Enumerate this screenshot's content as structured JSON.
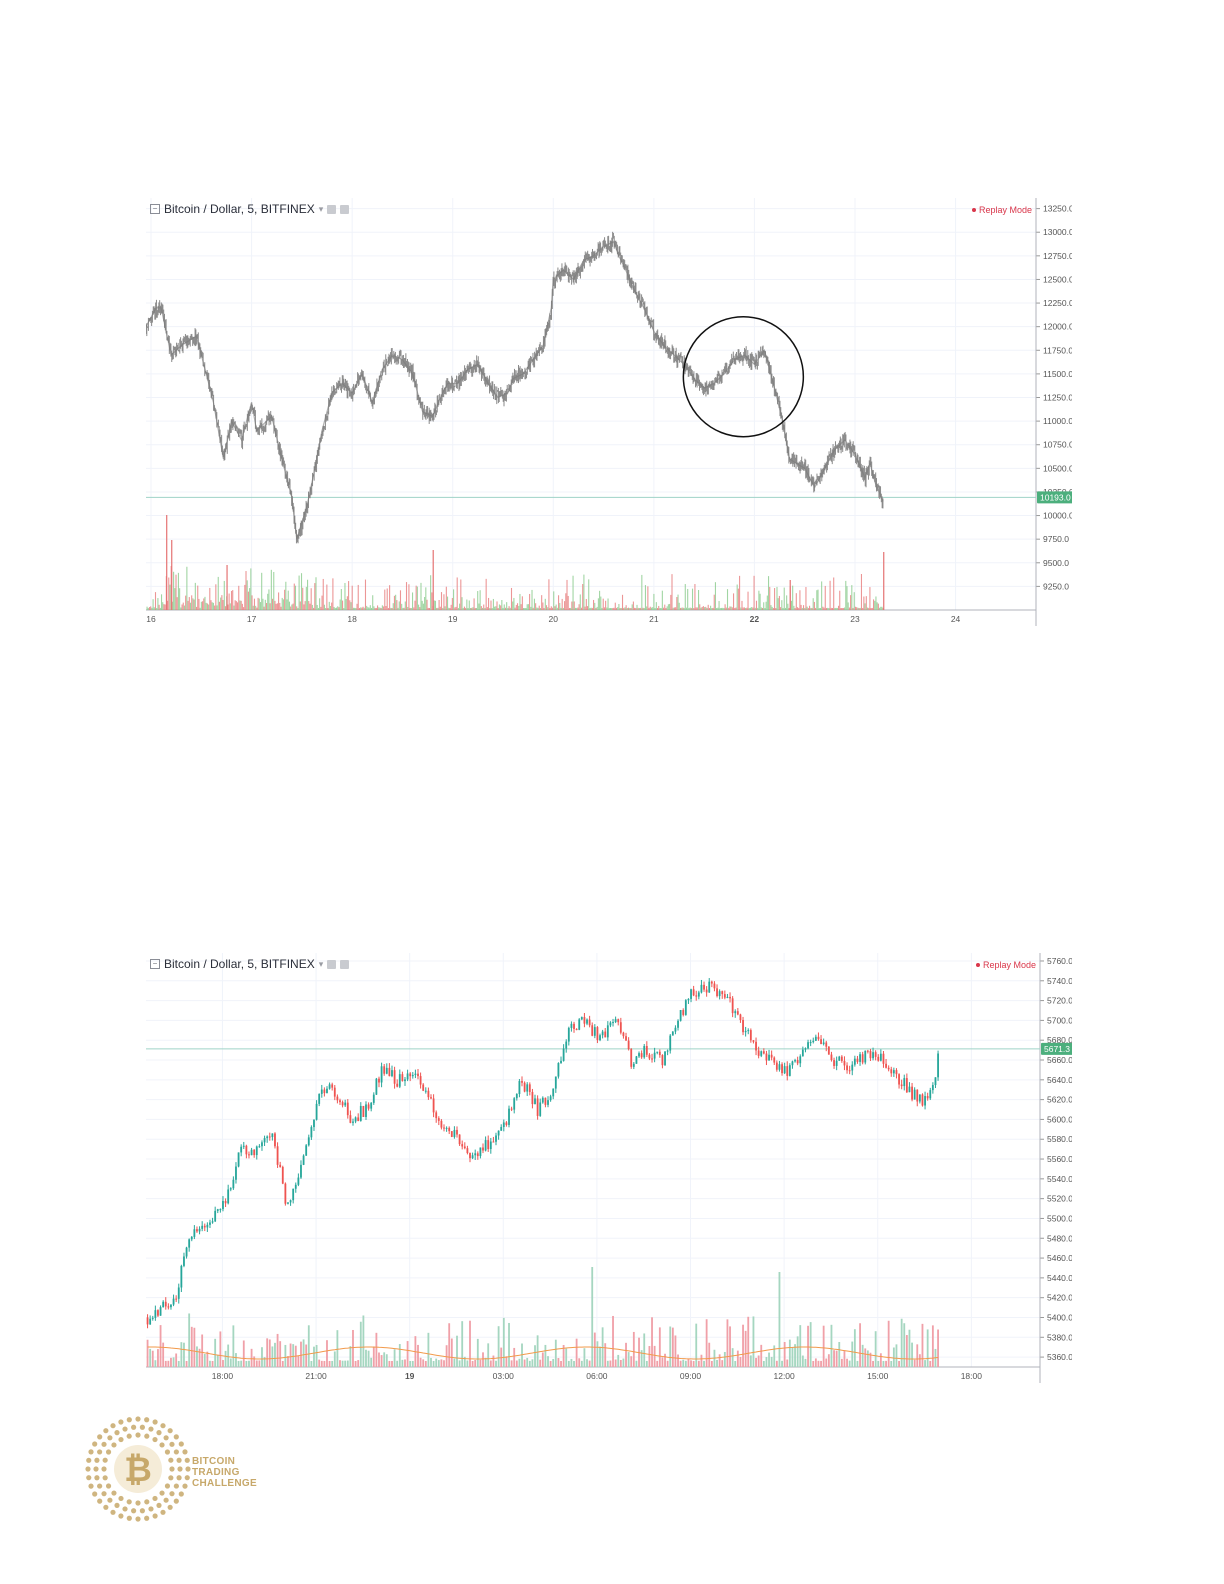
{
  "colors": {
    "bull": "#26a69a",
    "bear": "#ef5350",
    "bar_gray": "#8a8a8a",
    "grid": "#f0f3fa",
    "axis_text": "#555555",
    "price_line": "#9fd3c7",
    "price_badge": "#4caf7d",
    "volume_ma": "#f2994a",
    "replay": "#d9364a",
    "logo_gold": "#c7a86a"
  },
  "logo": {
    "line1": "BITCOIN",
    "line2": "TRADING",
    "line3": "CHALLENGE",
    "icon": "bitcoin-coin-icon"
  },
  "chart_data": [
    {
      "type": "line",
      "header": {
        "symbol": "Bitcoin / Dollar, 5, BITFINEX",
        "replay_label": "Replay Mode"
      },
      "y_ticks": [
        13250,
        13000,
        12750,
        12500,
        12250,
        12000,
        11750,
        11500,
        11250,
        11000,
        10750,
        10500,
        10250,
        10000,
        9750,
        9500,
        9250
      ],
      "ylim": [
        9000,
        13320
      ],
      "x_ticks": [
        "16",
        "17",
        "18",
        "19",
        "20",
        "21",
        "22",
        "23",
        "24"
      ],
      "x_bold": [
        "22"
      ],
      "xlim": [
        15.95,
        24.8
      ],
      "last_price": "10193.0",
      "last_price_value": 10193,
      "annotation": {
        "type": "circle",
        "x_center": 21.89,
        "y_center": 11470,
        "note": "highlight"
      },
      "series": [
        {
          "x": [
            15.95,
            16.05,
            16.1,
            16.2,
            16.3,
            16.45,
            16.55,
            16.62,
            16.72,
            16.8,
            16.9,
            17.0,
            17.05,
            17.2,
            17.3,
            17.4,
            17.45,
            17.55,
            17.62,
            17.7,
            17.8,
            17.9,
            18.0,
            18.1,
            18.2,
            18.3,
            18.4,
            18.5,
            18.6,
            18.7,
            18.8,
            18.9,
            18.95,
            19.05,
            19.15,
            19.25,
            19.35,
            19.45,
            19.55,
            19.6,
            19.7,
            19.8,
            19.9,
            19.98,
            20.0,
            20.1,
            20.2,
            20.3,
            20.4,
            20.5,
            20.6,
            20.65,
            20.7,
            20.8,
            20.9,
            21.0,
            21.1,
            21.2,
            21.3,
            21.4,
            21.5,
            21.6,
            21.7,
            21.8,
            21.9,
            22.0,
            22.1,
            22.2,
            22.28,
            22.35,
            22.42,
            22.5,
            22.6,
            22.7,
            22.8,
            22.9,
            23.0,
            23.1,
            23.15,
            23.2,
            23.28
          ],
          "y": [
            12000,
            12200,
            12200,
            11700,
            11800,
            11900,
            11500,
            11200,
            10600,
            11000,
            10800,
            11200,
            10900,
            11050,
            10600,
            10200,
            9750,
            10100,
            10450,
            10900,
            11300,
            11400,
            11300,
            11500,
            11200,
            11550,
            11700,
            11650,
            11500,
            11100,
            11050,
            11300,
            11400,
            11400,
            11550,
            11600,
            11400,
            11250,
            11300,
            11450,
            11500,
            11650,
            11800,
            12200,
            12500,
            12600,
            12500,
            12700,
            12750,
            12850,
            12900,
            12750,
            12650,
            12400,
            12200,
            11950,
            11800,
            11700,
            11600,
            11450,
            11350,
            11400,
            11500,
            11650,
            11700,
            11600,
            11750,
            11350,
            11000,
            10600,
            10550,
            10500,
            10300,
            10500,
            10700,
            10800,
            10650,
            10400,
            10550,
            10350,
            10150
          ]
        }
      ]
    },
    {
      "type": "candlestick",
      "header": {
        "symbol": "Bitcoin / Dollar, 5, BITFINEX",
        "replay_label": "Replay Mode"
      },
      "y_ticks": [
        5760,
        5740,
        5720,
        5700,
        5680,
        5660,
        5640,
        5620,
        5600,
        5580,
        5560,
        5540,
        5520,
        5500,
        5480,
        5460,
        5440,
        5420,
        5400,
        5380,
        5360
      ],
      "ylim": [
        5350,
        5762
      ],
      "x_ticks": [
        {
          "label": "18:00",
          "x": 18.0
        },
        {
          "label": "21:00",
          "x": 21.0
        },
        {
          "label": "19",
          "x": 24.0
        },
        {
          "label": "03:00",
          "x": 27.0
        },
        {
          "label": "06:00",
          "x": 30.0
        },
        {
          "label": "09:00",
          "x": 33.0
        },
        {
          "label": "12:00",
          "x": 36.0
        },
        {
          "label": "15:00",
          "x": 39.0
        },
        {
          "label": "18:00",
          "x": 42.0
        }
      ],
      "x_bold": [
        "19"
      ],
      "xlim": [
        15.55,
        44.2
      ],
      "last_price": "5671.3",
      "last_price_value": 5671.3,
      "close_path": {
        "t": [
          15.6,
          16.1,
          16.5,
          16.9,
          17.3,
          17.7,
          18.1,
          18.6,
          19.1,
          19.6,
          20.1,
          20.6,
          21.1,
          21.6,
          22.1,
          22.6,
          23.1,
          23.6,
          24.1,
          24.6,
          25.1,
          25.6,
          26.1,
          26.6,
          27.1,
          27.6,
          28.1,
          28.6,
          29.1,
          29.6,
          30.1,
          30.6,
          31.1,
          31.6,
          32.1,
          32.6,
          33.1,
          33.6,
          34.1,
          34.6,
          35.1,
          35.6,
          36.1,
          36.6,
          37.1,
          37.6,
          38.1,
          38.6,
          39.1,
          39.6,
          40.1,
          40.6,
          41.0
        ],
        "price": [
          5400,
          5410,
          5420,
          5480,
          5490,
          5500,
          5520,
          5570,
          5570,
          5580,
          5510,
          5560,
          5630,
          5630,
          5600,
          5610,
          5650,
          5640,
          5650,
          5620,
          5590,
          5580,
          5560,
          5580,
          5600,
          5640,
          5610,
          5630,
          5690,
          5700,
          5680,
          5700,
          5660,
          5670,
          5660,
          5700,
          5730,
          5735,
          5725,
          5700,
          5670,
          5660,
          5650,
          5670,
          5680,
          5660,
          5655,
          5665,
          5660,
          5645,
          5625,
          5615,
          5670
        ]
      }
    }
  ]
}
